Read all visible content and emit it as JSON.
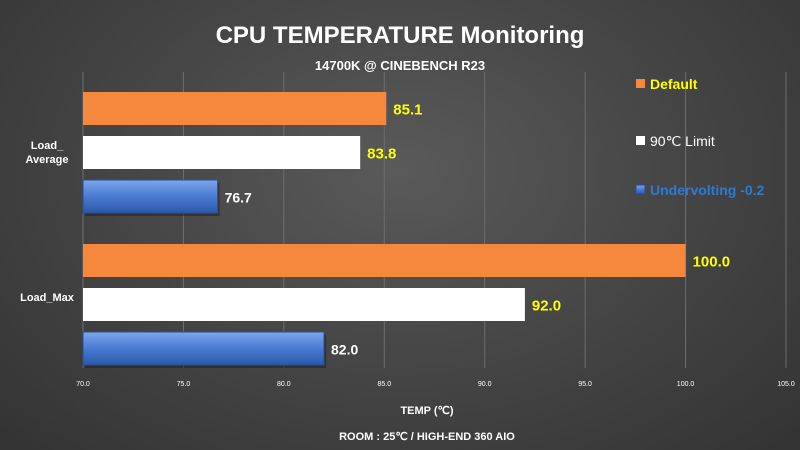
{
  "chart_data": {
    "type": "bar",
    "orientation": "horizontal",
    "title": "CPU TEMPERATURE Monitoring",
    "subtitle": "14700K @ CINEBENCH R23",
    "xlabel": "TEMP (℃)",
    "footnote": "ROOM : 25℃ / HIGH-END 360 AIO",
    "categories": [
      "Load_\nAverage",
      "Load_Max"
    ],
    "xlim": [
      70.0,
      105.0
    ],
    "xticks": [
      "70.0",
      "75.0",
      "80.0",
      "85.0",
      "90.0",
      "95.0",
      "100.0",
      "105.0"
    ],
    "grid": true,
    "legend_position": "top-right",
    "series": [
      {
        "name": "Default",
        "values": [
          85.1,
          100.0
        ],
        "labels": [
          "85.1",
          "100.0"
        ],
        "color": "#f5883d",
        "label_color": "#ffff00",
        "legend_color": "#ffff00"
      },
      {
        "name": "90℃ Limit",
        "values": [
          83.8,
          92.0
        ],
        "labels": [
          "83.8",
          "92.0"
        ],
        "color": "#ffffff",
        "label_color": "#ffff00",
        "legend_color": "#ffffff"
      },
      {
        "name": "Undervolting -0.2",
        "values": [
          76.7,
          82.0
        ],
        "labels": [
          "76.7",
          "82.0"
        ],
        "color": "#4472c4",
        "label_color": "#ffffff",
        "legend_color": "#2e7ad1"
      }
    ]
  }
}
